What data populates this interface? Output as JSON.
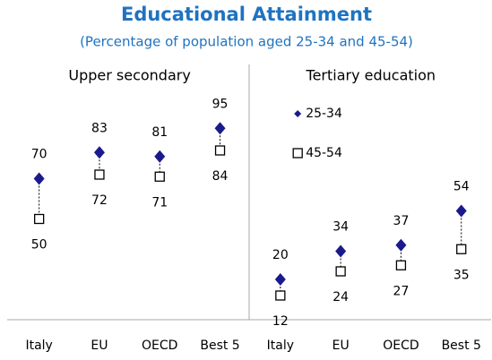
{
  "chart_data": {
    "type": "dot",
    "title": "Educational Attainment",
    "subtitle": "(Percentage of population aged 25-34 and 45-54)",
    "panel_labels": [
      "Upper secondary",
      "Tertiary education"
    ],
    "categories": [
      "Italy",
      "EU",
      "OECD",
      "Best 5",
      "Italy",
      "EU",
      "OECD",
      "Best 5"
    ],
    "series": [
      {
        "name": "25-34",
        "color": "#1a1a8c",
        "marker": "diamond",
        "values": [
          70,
          83,
          81,
          95,
          20,
          34,
          37,
          54
        ]
      },
      {
        "name": "45-54",
        "color": "#000000",
        "marker": "square",
        "values": [
          50,
          72,
          71,
          84,
          12,
          24,
          27,
          35
        ]
      }
    ],
    "ylim": [
      0,
      100
    ]
  }
}
